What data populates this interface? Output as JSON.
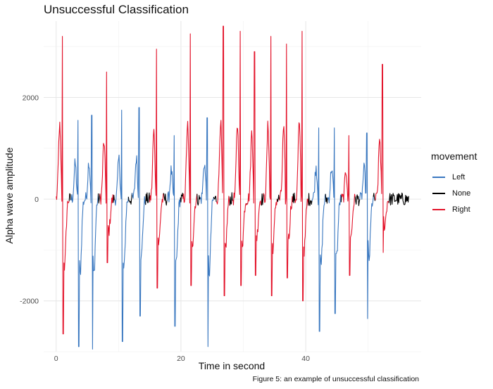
{
  "chart_data": {
    "type": "line",
    "title": "Unsuccessful Classification",
    "xlabel": "Time in second",
    "ylabel": "Alpha wave amplitude",
    "caption": "Figure 5: an example of unsuccessful classification",
    "xlim": [
      -2,
      58.5
    ],
    "ylim": [
      -3000,
      3500
    ],
    "x_ticks": [
      0,
      20,
      40
    ],
    "y_ticks": [
      -2000,
      0,
      2000
    ],
    "grid": true,
    "legend": {
      "title": "movement",
      "placement": "right",
      "entries": [
        {
          "name": "Left",
          "color": "#3a78c0"
        },
        {
          "name": "None",
          "color": "#000000"
        },
        {
          "name": "Right",
          "color": "#e3132a"
        }
      ]
    },
    "spikes": [
      {
        "x": 1.0,
        "hi": 3200,
        "lo": -2650,
        "class": "Right"
      },
      {
        "x": 3.5,
        "hi": 1550,
        "lo": -2900,
        "class": "Left"
      },
      {
        "x": 5.7,
        "hi": 1650,
        "lo": -2950,
        "class": "Left"
      },
      {
        "x": 8.1,
        "hi": 2500,
        "lo": -1250,
        "class": "Right"
      },
      {
        "x": 10.5,
        "hi": 1750,
        "lo": -2800,
        "class": "Left"
      },
      {
        "x": 13.3,
        "hi": 1800,
        "lo": -2300,
        "class": "Left"
      },
      {
        "x": 16.1,
        "hi": 2950,
        "lo": -1750,
        "class": "Right"
      },
      {
        "x": 18.9,
        "hi": 1250,
        "lo": -2500,
        "class": "Left"
      },
      {
        "x": 21.5,
        "hi": 3250,
        "lo": -1700,
        "class": "Right"
      },
      {
        "x": 24.2,
        "hi": 1600,
        "lo": -2900,
        "class": "Left"
      },
      {
        "x": 26.8,
        "hi": 3400,
        "lo": -1900,
        "class": "Right"
      },
      {
        "x": 29.5,
        "hi": 3300,
        "lo": -1700,
        "class": "Right"
      },
      {
        "x": 31.8,
        "hi": 2900,
        "lo": -1500,
        "class": "Right"
      },
      {
        "x": 34.4,
        "hi": 3200,
        "lo": -1900,
        "class": "Right"
      },
      {
        "x": 36.9,
        "hi": 3050,
        "lo": -1550,
        "class": "Right"
      },
      {
        "x": 39.4,
        "hi": 3300,
        "lo": -2000,
        "class": "Right"
      },
      {
        "x": 42.1,
        "hi": 1400,
        "lo": -2600,
        "class": "Left"
      },
      {
        "x": 44.6,
        "hi": 1400,
        "lo": -2250,
        "class": "Left"
      },
      {
        "x": 46.9,
        "hi": 1250,
        "lo": -1500,
        "class": "Right"
      },
      {
        "x": 49.8,
        "hi": 1300,
        "lo": -2350,
        "class": "Left"
      },
      {
        "x": 52.3,
        "hi": 2650,
        "lo": -1050,
        "class": "Right"
      }
    ],
    "none_segments": [
      [
        1.6,
        3.0
      ],
      [
        6.3,
        7.6
      ],
      [
        11.0,
        12.8
      ],
      [
        17.5,
        18.4
      ],
      [
        22.3,
        23.7
      ],
      [
        24.8,
        26.2
      ],
      [
        40.5,
        41.6
      ],
      [
        48.0,
        49.3
      ],
      [
        53.0,
        56.5
      ]
    ],
    "samples_per_second": 12
  }
}
